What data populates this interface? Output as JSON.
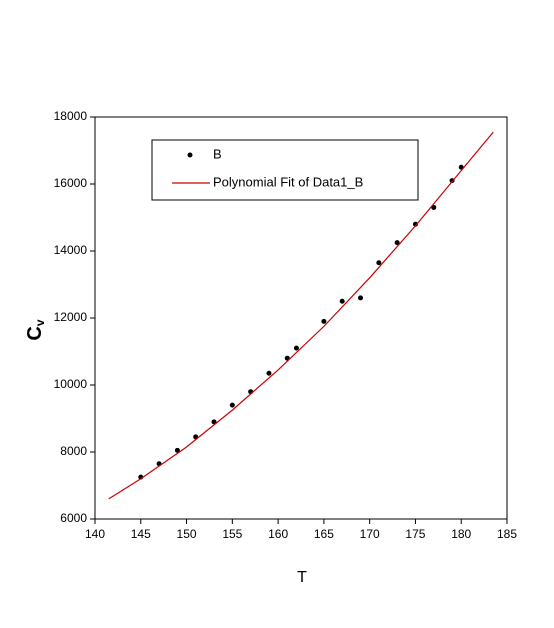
{
  "chart_data": {
    "type": "scatter",
    "x_label": "T",
    "y_label": "C",
    "y_label_subscript": "v",
    "xlim": [
      140,
      185
    ],
    "xticks": [
      140,
      145,
      150,
      155,
      160,
      165,
      170,
      175,
      180,
      185
    ],
    "ylim": [
      6000,
      18000
    ],
    "yticks": [
      6000,
      8000,
      10000,
      12000,
      14000,
      16000,
      18000
    ],
    "legend": "top-left",
    "series": [
      {
        "name": "B",
        "type": "scatter",
        "color": "#000000",
        "x": [
          145,
          147,
          149,
          151,
          153,
          155,
          157,
          159,
          161,
          162,
          165,
          167,
          169,
          171,
          173,
          175,
          177,
          179,
          180
        ],
        "values": [
          7250,
          7650,
          8050,
          8450,
          8900,
          9400,
          9800,
          10350,
          10800,
          11100,
          11900,
          12500,
          12600,
          13650,
          14250,
          14800,
          15300,
          16100,
          16500
        ]
      },
      {
        "name": "Polynomial Fit of Data1_B",
        "type": "line",
        "color": "#cc0000",
        "x": [
          141.5,
          145,
          150,
          155,
          160,
          165,
          170,
          175,
          180,
          183.5
        ],
        "values": [
          6600,
          7200,
          8150,
          9250,
          10450,
          11750,
          13200,
          14750,
          16400,
          17550
        ]
      }
    ]
  }
}
